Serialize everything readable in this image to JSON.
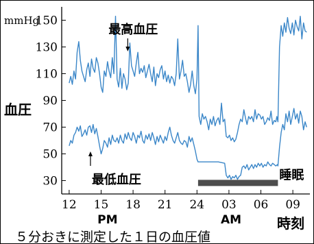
{
  "colors": {
    "series": "#3a86c8",
    "sleep_bar": "#4d4d4d",
    "axis": "#000000",
    "text": "#000000"
  },
  "chart_data": {
    "type": "line",
    "y_unit": "mmHg",
    "ylabel": "血圧",
    "xlabel": "時刻",
    "caption": "５分おきに測定した１日の血圧値",
    "y_ticks": [
      30,
      50,
      70,
      90,
      110,
      130,
      150
    ],
    "ylim": [
      20,
      160
    ],
    "x_ticks": [
      {
        "hour": 12,
        "label": "12"
      },
      {
        "hour": 15,
        "label": "15"
      },
      {
        "hour": 18,
        "label": "18"
      },
      {
        "hour": 21,
        "label": "21"
      },
      {
        "hour": 24,
        "label": "24"
      },
      {
        "hour": 27,
        "label": "03"
      },
      {
        "hour": 30,
        "label": "06"
      },
      {
        "hour": 33,
        "label": "09"
      }
    ],
    "xlim": [
      11.3,
      34.6
    ],
    "period_labels": [
      {
        "hour": 15.6,
        "text": "PM"
      },
      {
        "hour": 27.2,
        "text": "AM"
      }
    ],
    "annotations": [
      {
        "text": "最高血圧",
        "series": "最高血圧",
        "hour": 17.5,
        "value": 132
      },
      {
        "text": "最低血圧",
        "series": "最低血圧",
        "hour": 14.0,
        "value": 58
      }
    ],
    "sleep_period": {
      "label": "睡眠",
      "start": 24.1,
      "end": 31.6,
      "value": 28
    },
    "series": [
      {
        "name": "最高血圧",
        "points": [
          [
            12.0,
            103
          ],
          [
            12.15,
            108
          ],
          [
            12.3,
            102
          ],
          [
            12.45,
            112
          ],
          [
            12.6,
            106
          ],
          [
            12.75,
            126
          ],
          [
            12.9,
            134
          ],
          [
            13.05,
            120
          ],
          [
            13.2,
            112
          ],
          [
            13.35,
            108
          ],
          [
            13.5,
            104
          ],
          [
            13.65,
            113
          ],
          [
            13.8,
            118
          ],
          [
            13.95,
            108
          ],
          [
            14.1,
            121
          ],
          [
            14.25,
            114
          ],
          [
            14.4,
            111
          ],
          [
            14.55,
            122
          ],
          [
            14.7,
            118
          ],
          [
            14.85,
            110
          ],
          [
            15.0,
            100
          ],
          [
            15.15,
            96
          ],
          [
            15.3,
            112
          ],
          [
            15.45,
            108
          ],
          [
            15.6,
            119
          ],
          [
            15.75,
            112
          ],
          [
            15.9,
            107
          ],
          [
            16.05,
            122
          ],
          [
            16.2,
            110
          ],
          [
            16.35,
            153
          ],
          [
            16.5,
            106
          ],
          [
            16.65,
            100
          ],
          [
            16.8,
            114
          ],
          [
            16.95,
            99
          ],
          [
            17.1,
            110
          ],
          [
            17.25,
            106
          ],
          [
            17.4,
            98
          ],
          [
            17.55,
            103
          ],
          [
            17.7,
            133
          ],
          [
            17.85,
            116
          ],
          [
            18.0,
            112
          ],
          [
            18.15,
            108
          ],
          [
            18.3,
            118
          ],
          [
            18.45,
            126
          ],
          [
            18.6,
            110
          ],
          [
            18.75,
            114
          ],
          [
            18.9,
            111
          ],
          [
            19.05,
            116
          ],
          [
            19.2,
            107
          ],
          [
            19.35,
            112
          ],
          [
            19.5,
            117
          ],
          [
            19.65,
            110
          ],
          [
            19.8,
            104
          ],
          [
            19.95,
            115
          ],
          [
            20.1,
            101
          ],
          [
            20.25,
            110
          ],
          [
            20.4,
            107
          ],
          [
            20.55,
            113
          ],
          [
            20.7,
            116
          ],
          [
            20.85,
            106
          ],
          [
            21.0,
            112
          ],
          [
            21.15,
            104
          ],
          [
            21.3,
            109
          ],
          [
            21.45,
            103
          ],
          [
            21.6,
            108
          ],
          [
            21.75,
            106
          ],
          [
            21.9,
            101
          ],
          [
            22.05,
            110
          ],
          [
            22.2,
            136
          ],
          [
            22.35,
            106
          ],
          [
            22.5,
            112
          ],
          [
            22.65,
            120
          ],
          [
            22.8,
            108
          ],
          [
            22.95,
            110
          ],
          [
            23.1,
            104
          ],
          [
            23.25,
            96
          ],
          [
            23.4,
            102
          ],
          [
            23.55,
            112
          ],
          [
            23.7,
            101
          ],
          [
            23.85,
            95
          ],
          [
            24.0,
            106
          ],
          [
            24.1,
            146
          ],
          [
            24.2,
            78
          ],
          [
            24.35,
            72
          ],
          [
            24.5,
            80
          ],
          [
            24.65,
            76
          ],
          [
            24.8,
            78
          ],
          [
            24.95,
            74
          ],
          [
            25.1,
            68
          ],
          [
            25.25,
            76
          ],
          [
            25.4,
            72
          ],
          [
            25.55,
            78
          ],
          [
            25.7,
            71
          ],
          [
            25.85,
            75
          ],
          [
            26.0,
            77
          ],
          [
            26.15,
            72
          ],
          [
            26.3,
            88
          ],
          [
            26.45,
            74
          ],
          [
            26.6,
            76
          ],
          [
            26.75,
            63
          ],
          [
            26.9,
            62
          ],
          [
            27.05,
            64
          ],
          [
            27.2,
            60
          ],
          [
            27.35,
            62
          ],
          [
            27.5,
            59
          ],
          [
            27.65,
            61
          ],
          [
            27.8,
            66
          ],
          [
            27.95,
            72
          ],
          [
            28.1,
            76
          ],
          [
            28.25,
            74
          ],
          [
            28.4,
            83
          ],
          [
            28.55,
            77
          ],
          [
            28.7,
            72
          ],
          [
            28.85,
            78
          ],
          [
            29.0,
            76
          ],
          [
            29.15,
            78
          ],
          [
            29.3,
            74
          ],
          [
            29.45,
            83
          ],
          [
            29.6,
            76
          ],
          [
            29.75,
            80
          ],
          [
            29.9,
            79
          ],
          [
            30.05,
            76
          ],
          [
            30.2,
            78
          ],
          [
            30.35,
            72
          ],
          [
            30.5,
            74
          ],
          [
            30.65,
            77
          ],
          [
            30.8,
            75
          ],
          [
            30.95,
            82
          ],
          [
            31.1,
            72
          ],
          [
            31.25,
            75
          ],
          [
            31.4,
            74
          ],
          [
            31.5,
            78
          ],
          [
            31.6,
            74
          ],
          [
            31.75,
            130
          ],
          [
            31.9,
            146
          ],
          [
            32.05,
            138
          ],
          [
            32.2,
            148
          ],
          [
            32.35,
            141
          ],
          [
            32.5,
            152
          ],
          [
            32.65,
            144
          ],
          [
            32.8,
            140
          ],
          [
            32.95,
            148
          ],
          [
            33.1,
            139
          ],
          [
            33.25,
            150
          ],
          [
            33.4,
            145
          ],
          [
            33.55,
            142
          ],
          [
            33.7,
            153
          ],
          [
            33.85,
            136
          ],
          [
            34.0,
            148
          ],
          [
            34.15,
            142
          ],
          [
            34.3,
            141
          ]
        ]
      },
      {
        "name": "最低血圧",
        "points": [
          [
            12.0,
            56
          ],
          [
            12.15,
            60
          ],
          [
            12.3,
            58
          ],
          [
            12.45,
            64
          ],
          [
            12.6,
            66
          ],
          [
            12.75,
            70
          ],
          [
            12.9,
            67
          ],
          [
            13.05,
            71
          ],
          [
            13.2,
            63
          ],
          [
            13.35,
            65
          ],
          [
            13.5,
            68
          ],
          [
            13.65,
            64
          ],
          [
            13.8,
            70
          ],
          [
            13.95,
            71
          ],
          [
            14.1,
            66
          ],
          [
            14.25,
            72
          ],
          [
            14.4,
            65
          ],
          [
            14.55,
            69
          ],
          [
            14.7,
            63
          ],
          [
            14.85,
            56
          ],
          [
            15.0,
            50
          ],
          [
            15.15,
            54
          ],
          [
            15.3,
            60
          ],
          [
            15.45,
            58
          ],
          [
            15.6,
            55
          ],
          [
            15.75,
            62
          ],
          [
            15.9,
            57
          ],
          [
            16.05,
            64
          ],
          [
            16.2,
            60
          ],
          [
            16.35,
            59
          ],
          [
            16.5,
            62
          ],
          [
            16.65,
            58
          ],
          [
            16.8,
            64
          ],
          [
            16.95,
            60
          ],
          [
            17.1,
            58
          ],
          [
            17.25,
            65
          ],
          [
            17.4,
            61
          ],
          [
            17.55,
            66
          ],
          [
            17.7,
            62
          ],
          [
            17.85,
            60
          ],
          [
            18.0,
            66
          ],
          [
            18.15,
            63
          ],
          [
            18.3,
            58
          ],
          [
            18.45,
            64
          ],
          [
            18.6,
            62
          ],
          [
            18.75,
            67
          ],
          [
            18.9,
            60
          ],
          [
            19.05,
            58
          ],
          [
            19.2,
            64
          ],
          [
            19.35,
            61
          ],
          [
            19.5,
            65
          ],
          [
            19.65,
            60
          ],
          [
            19.8,
            66
          ],
          [
            19.95,
            62
          ],
          [
            20.1,
            57
          ],
          [
            20.25,
            63
          ],
          [
            20.4,
            59
          ],
          [
            20.55,
            64
          ],
          [
            20.7,
            61
          ],
          [
            20.85,
            58
          ],
          [
            21.0,
            63
          ],
          [
            21.15,
            60
          ],
          [
            21.3,
            66
          ],
          [
            21.45,
            70
          ],
          [
            21.6,
            64
          ],
          [
            21.75,
            60
          ],
          [
            21.9,
            58
          ],
          [
            22.05,
            62
          ],
          [
            22.2,
            66
          ],
          [
            22.35,
            60
          ],
          [
            22.5,
            58
          ],
          [
            22.65,
            57
          ],
          [
            22.8,
            60
          ],
          [
            22.95,
            59
          ],
          [
            23.1,
            55
          ],
          [
            23.25,
            63
          ],
          [
            23.4,
            59
          ],
          [
            23.55,
            62
          ],
          [
            23.7,
            57
          ],
          [
            23.85,
            52
          ],
          [
            24.0,
            46
          ],
          [
            24.1,
            44
          ],
          [
            25.0,
            44
          ],
          [
            26.0,
            44
          ],
          [
            26.6,
            43
          ],
          [
            26.75,
            34
          ],
          [
            26.9,
            32
          ],
          [
            27.05,
            34
          ],
          [
            27.2,
            31
          ],
          [
            27.35,
            33
          ],
          [
            27.5,
            32
          ],
          [
            27.65,
            34
          ],
          [
            27.8,
            31
          ],
          [
            27.95,
            33
          ],
          [
            28.1,
            34
          ],
          [
            28.25,
            40
          ],
          [
            28.4,
            41
          ],
          [
            28.55,
            39
          ],
          [
            28.7,
            42
          ],
          [
            28.85,
            38
          ],
          [
            29.0,
            40
          ],
          [
            29.15,
            42
          ],
          [
            29.3,
            39
          ],
          [
            29.45,
            42
          ],
          [
            29.6,
            40
          ],
          [
            29.75,
            43
          ],
          [
            29.9,
            41
          ],
          [
            30.05,
            43
          ],
          [
            30.2,
            40
          ],
          [
            30.35,
            42
          ],
          [
            30.5,
            41
          ],
          [
            30.65,
            44
          ],
          [
            30.8,
            42
          ],
          [
            30.95,
            41
          ],
          [
            31.1,
            43
          ],
          [
            31.25,
            42
          ],
          [
            31.4,
            41
          ],
          [
            31.55,
            42
          ],
          [
            31.6,
            41
          ],
          [
            31.75,
            55
          ],
          [
            31.9,
            66
          ],
          [
            32.05,
            72
          ],
          [
            32.2,
            68
          ],
          [
            32.35,
            80
          ],
          [
            32.5,
            74
          ],
          [
            32.65,
            82
          ],
          [
            32.8,
            72
          ],
          [
            32.95,
            78
          ],
          [
            33.1,
            84
          ],
          [
            33.25,
            76
          ],
          [
            33.4,
            80
          ],
          [
            33.55,
            73
          ],
          [
            33.7,
            82
          ],
          [
            33.85,
            78
          ],
          [
            34.0,
            68
          ],
          [
            34.15,
            74
          ],
          [
            34.3,
            70
          ]
        ]
      }
    ]
  }
}
